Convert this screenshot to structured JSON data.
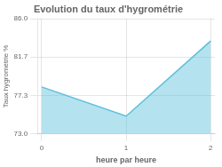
{
  "chart_data": {
    "type": "area",
    "title": "Evolution du taux d'hygrométrie",
    "xlabel": "heure par heure",
    "ylabel": "Taux hygrométrie %",
    "x": [
      0,
      1,
      2
    ],
    "values": [
      78.3,
      75.0,
      83.5
    ],
    "color": "#5bbfdb",
    "xlim": [
      -0.05,
      2.05
    ],
    "ylim": [
      73.0,
      86.0
    ],
    "xticks": [
      0,
      1,
      2
    ],
    "yticks": [
      {
        "value": 73.0,
        "label": "73.0"
      },
      77.3,
      81.7,
      {
        "value": 86.0,
        "label": "86.0"
      }
    ],
    "grid": true
  }
}
